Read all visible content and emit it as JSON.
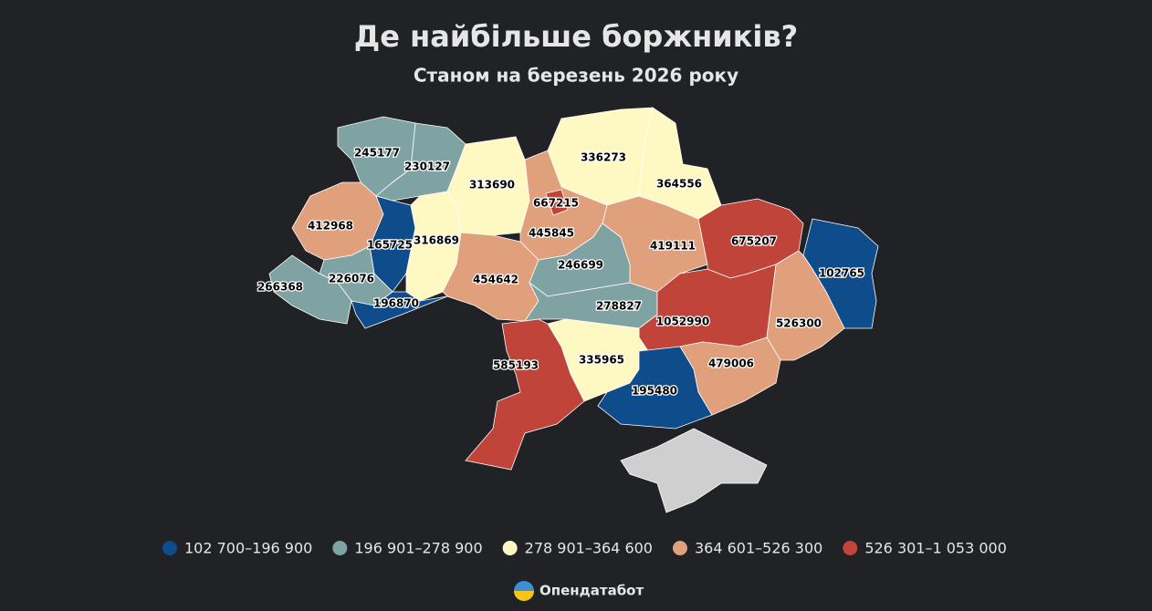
{
  "title": "Де найбільше боржників?",
  "subtitle": "Станом на березень 2026 року",
  "regions": [
    {
      "value": 245177
    },
    {
      "value": 230127
    },
    {
      "value": 313690
    },
    {
      "value": 667215
    },
    {
      "value": 336273
    },
    {
      "value": 364556
    },
    {
      "value": 412968
    },
    {
      "value": 165725
    },
    {
      "value": 316869
    },
    {
      "value": 445845
    },
    {
      "value": 419111
    },
    {
      "value": 675207
    },
    {
      "value": 102765
    },
    {
      "value": 226076
    },
    {
      "value": 266368
    },
    {
      "value": 196870
    },
    {
      "value": 454642
    },
    {
      "value": 246699
    },
    {
      "value": 278827
    },
    {
      "value": 1052990
    },
    {
      "value": 526300
    },
    {
      "value": 585193
    },
    {
      "value": 335965
    },
    {
      "value": 479006
    },
    {
      "value": 195480
    }
  ],
  "legend": [
    {
      "label": "102 700–196 900",
      "min": 102700,
      "max": 196900,
      "color": "#0f4c8c"
    },
    {
      "label": "196 901–278 900",
      "min": 196901,
      "max": 278900,
      "color": "#7fa3a3"
    },
    {
      "label": "278 901–364 600",
      "min": 278901,
      "max": 364600,
      "color": "#fef9c3"
    },
    {
      "label": "364 601–526 300",
      "min": 364601,
      "max": 526300,
      "color": "#e0a07c"
    },
    {
      "label": "526 301–1 053 000",
      "min": 526301,
      "max": 1053000,
      "color": "#c0443a"
    }
  ],
  "footer": "Опендатабот"
}
